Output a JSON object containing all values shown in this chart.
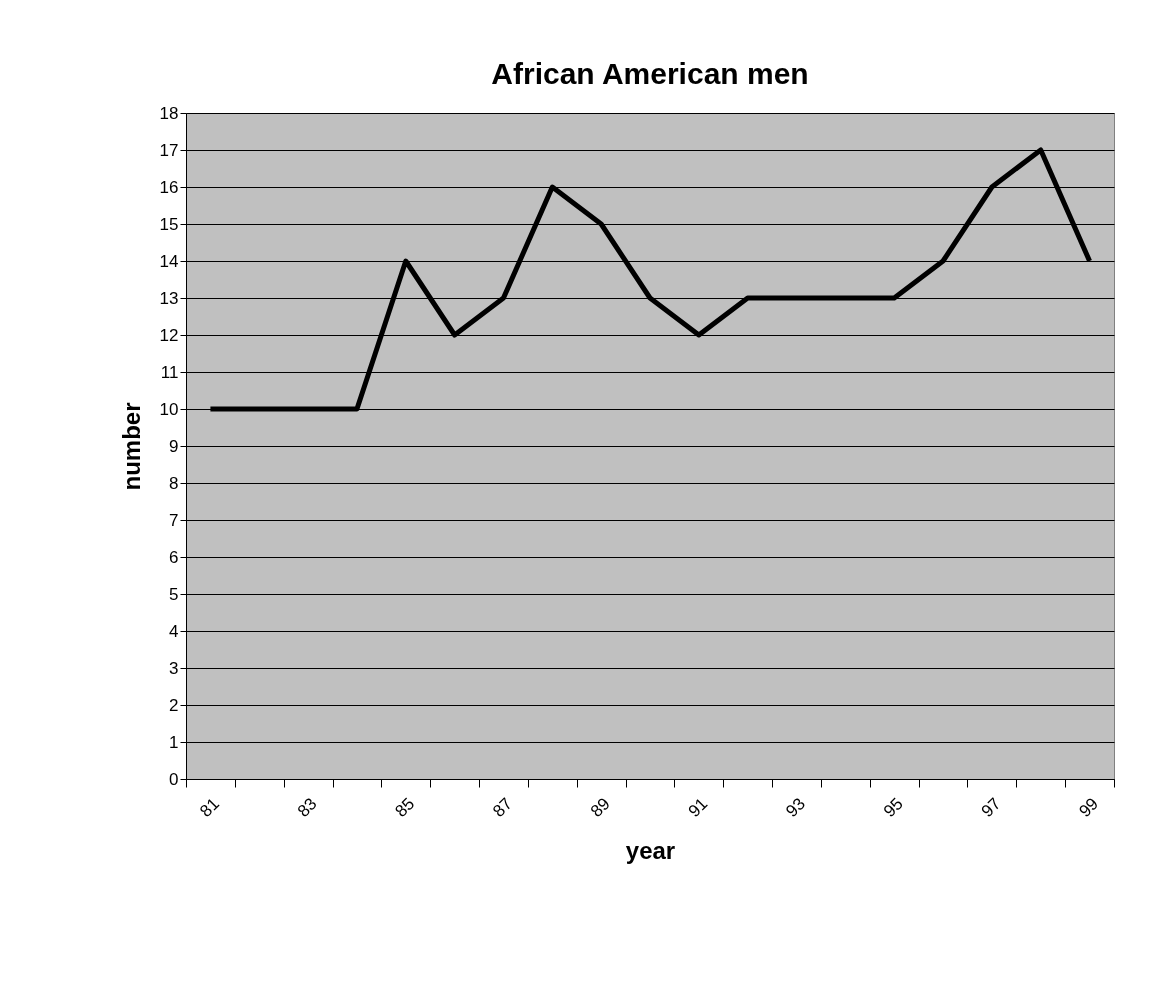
{
  "chart_data": {
    "type": "line",
    "title": "African American men",
    "xlabel": "year",
    "ylabel": "number",
    "categories": [
      "81",
      null,
      "83",
      null,
      "85",
      null,
      "87",
      null,
      "89",
      null,
      "91",
      null,
      "93",
      null,
      "95",
      null,
      "97",
      null,
      "99"
    ],
    "series": [
      {
        "color": "#000000",
        "values": [
          10,
          10,
          10,
          10,
          14,
          12,
          13,
          16,
          15,
          13,
          12,
          13,
          13,
          13,
          13,
          14,
          16,
          17,
          14
        ]
      }
    ],
    "ylim": [
      0,
      18
    ],
    "yticks": [
      0,
      1,
      2,
      3,
      4,
      5,
      6,
      7,
      8,
      9,
      10,
      11,
      12,
      13,
      14,
      15,
      16,
      17,
      18
    ],
    "grid": "y",
    "marker": "none",
    "line_style": "solid"
  }
}
